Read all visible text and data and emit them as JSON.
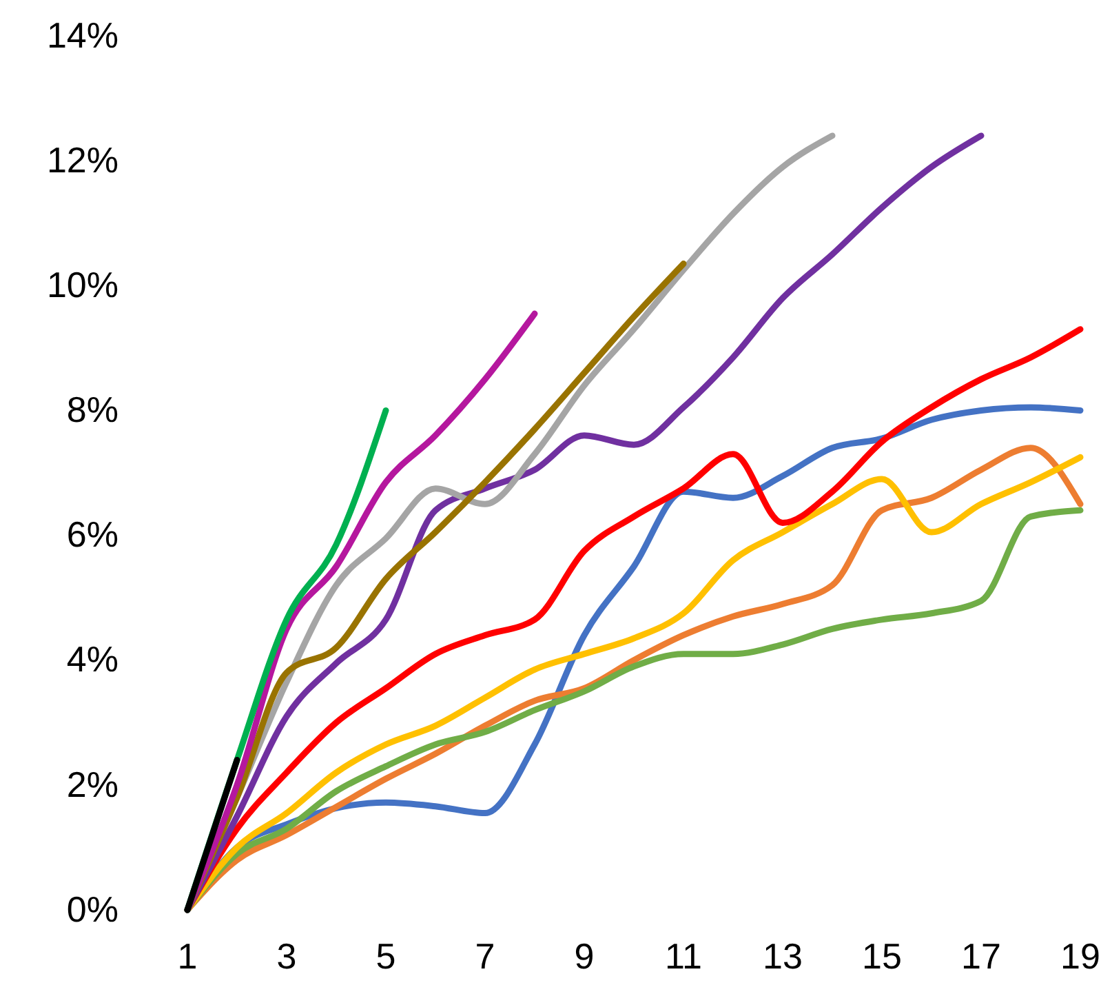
{
  "chart_data": {
    "type": "line",
    "xlim": [
      1,
      19
    ],
    "ylim": [
      0,
      14
    ],
    "xticks": [
      1,
      3,
      5,
      7,
      9,
      11,
      13,
      15,
      17,
      19
    ],
    "yticks": [
      {
        "value": 0,
        "label": "0%"
      },
      {
        "value": 2,
        "label": "2%"
      },
      {
        "value": 4,
        "label": "4%"
      },
      {
        "value": 6,
        "label": "6%"
      },
      {
        "value": 8,
        "label": "8%"
      },
      {
        "value": 10,
        "label": "10%"
      },
      {
        "value": 12,
        "label": "12%"
      },
      {
        "value": 14,
        "label": "14%"
      }
    ],
    "grid": false,
    "marker": "none",
    "line_style": "solid",
    "series": [
      {
        "color": "#4472c4",
        "x": [
          1,
          2,
          3,
          4,
          5,
          6,
          7,
          8,
          9,
          10,
          11,
          12,
          13,
          14,
          15,
          16,
          17,
          18,
          19
        ],
        "values": [
          0,
          1.0,
          1.37,
          1.63,
          1.72,
          1.66,
          1.55,
          2.65,
          4.4,
          5.5,
          6.7,
          6.6,
          6.95,
          7.4,
          7.55,
          7.85,
          8.0,
          8.05,
          8.0
        ]
      },
      {
        "color": "#ed7d31",
        "x": [
          1,
          2,
          3,
          4,
          5,
          6,
          7,
          8,
          9,
          10,
          11,
          12,
          13,
          14,
          15,
          16,
          17,
          18,
          19
        ],
        "values": [
          0,
          0.8,
          1.2,
          1.65,
          2.1,
          2.5,
          2.95,
          3.35,
          3.55,
          4.0,
          4.4,
          4.7,
          4.9,
          5.2,
          6.4,
          6.6,
          7.05,
          7.4,
          6.5
        ]
      },
      {
        "color": "#70ad47",
        "x": [
          1,
          2,
          3,
          4,
          5,
          6,
          7,
          8,
          9,
          10,
          11,
          12,
          13,
          14,
          15,
          16,
          17,
          18,
          19
        ],
        "values": [
          0,
          0.9,
          1.3,
          1.9,
          2.3,
          2.65,
          2.85,
          3.2,
          3.5,
          3.9,
          4.1,
          4.1,
          4.25,
          4.5,
          4.65,
          4.75,
          4.95,
          6.3,
          6.4
        ]
      },
      {
        "color": "#ffc000",
        "x": [
          1,
          2,
          3,
          4,
          5,
          6,
          7,
          8,
          9,
          10,
          11,
          12,
          13,
          14,
          15,
          16,
          17,
          18,
          19
        ],
        "values": [
          0,
          1.0,
          1.55,
          2.2,
          2.65,
          2.95,
          3.4,
          3.85,
          4.1,
          4.35,
          4.75,
          5.6,
          6.05,
          6.5,
          6.9,
          6.05,
          6.5,
          6.85,
          7.25
        ]
      },
      {
        "color": "#ff0000",
        "x": [
          1,
          2,
          3,
          4,
          5,
          6,
          7,
          8,
          9,
          10,
          11,
          12,
          13,
          14,
          15,
          16,
          17,
          18,
          19
        ],
        "values": [
          0,
          1.3,
          2.2,
          3.0,
          3.55,
          4.1,
          4.4,
          4.65,
          5.75,
          6.3,
          6.75,
          7.3,
          6.2,
          6.7,
          7.5,
          8.05,
          8.5,
          8.85,
          9.3
        ]
      },
      {
        "color": "#7030a0",
        "x": [
          1,
          2,
          3,
          4,
          5,
          6,
          7,
          8,
          9,
          10,
          11,
          12,
          13,
          14,
          15,
          16,
          17
        ],
        "values": [
          0,
          1.5,
          3.1,
          3.95,
          4.65,
          6.4,
          6.75,
          7.05,
          7.6,
          7.45,
          8.05,
          8.85,
          9.8,
          10.5,
          11.25,
          11.9,
          12.4
        ]
      },
      {
        "color": "#a5a5a5",
        "x": [
          1,
          2,
          3,
          4,
          5,
          6,
          7,
          8,
          9,
          10,
          11,
          12,
          13,
          14
        ],
        "values": [
          0,
          1.8,
          3.65,
          5.2,
          5.95,
          6.75,
          6.5,
          7.3,
          8.4,
          9.3,
          10.25,
          11.15,
          11.9,
          12.4
        ]
      },
      {
        "color": "#997300",
        "x": [
          1,
          2,
          3,
          4,
          5,
          6,
          7,
          8,
          9,
          10,
          11
        ],
        "values": [
          0,
          1.8,
          3.8,
          4.2,
          5.3,
          6.05,
          6.85,
          7.7,
          8.6,
          9.5,
          10.35
        ]
      },
      {
        "color": "#b5179e",
        "x": [
          1,
          2,
          3,
          4,
          5,
          6,
          7,
          8
        ],
        "values": [
          0,
          2.0,
          4.5,
          5.5,
          6.85,
          7.6,
          8.5,
          9.55
        ]
      },
      {
        "color": "#00b050",
        "x": [
          1,
          2,
          3,
          4,
          5
        ],
        "values": [
          0,
          2.4,
          4.65,
          5.85,
          8.0
        ]
      },
      {
        "color": "#000000",
        "x": [
          1,
          2
        ],
        "values": [
          0,
          2.4
        ]
      }
    ]
  }
}
